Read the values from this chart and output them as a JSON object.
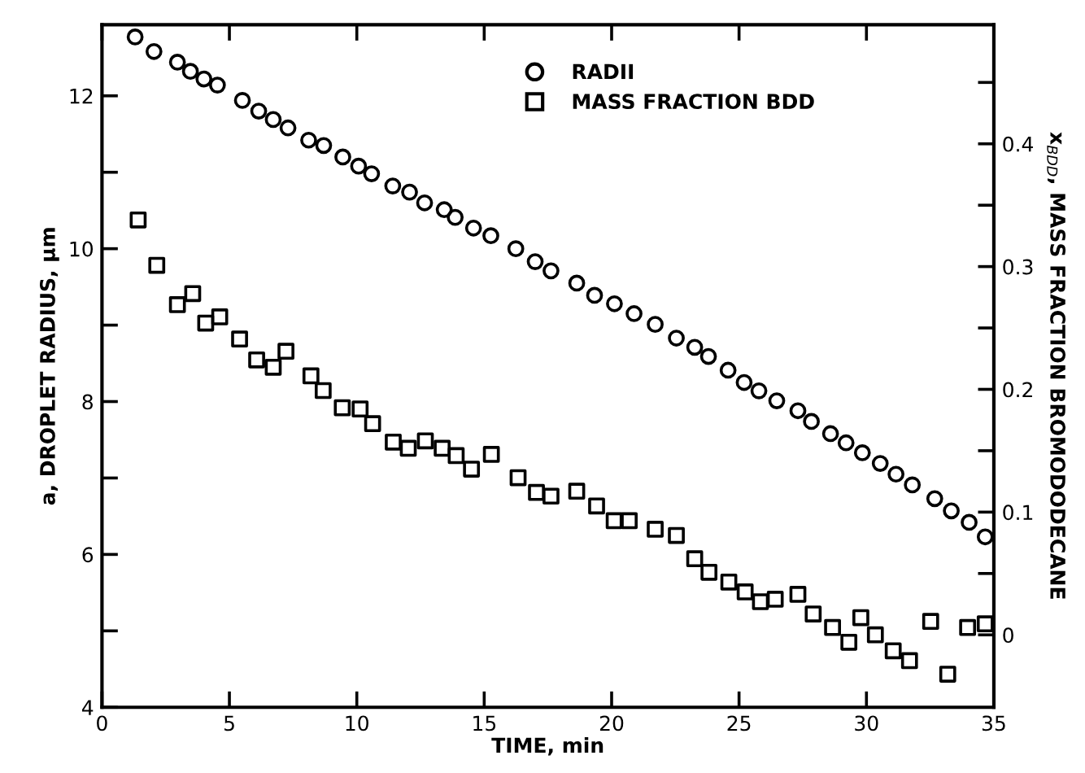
{
  "chart_data": {
    "type": "scatter",
    "xlabel": "TIME, min",
    "ylabel": "a, DROPLET RADIUS, μm",
    "y2label": "x$_{BDD}$, MASS FRACTION BROMODODECANE",
    "xlim": [
      0,
      35
    ],
    "xticks": [
      0,
      5,
      10,
      15,
      20,
      25,
      30,
      35
    ],
    "ylim": [
      4,
      12.93
    ],
    "yticks": [
      4,
      {
        "value": 5,
        "label": null
      },
      6,
      {
        "value": 7,
        "label": null
      },
      8,
      {
        "value": 9,
        "label": null
      },
      10,
      {
        "value": 11,
        "label": null
      },
      12
    ],
    "y2lim": [
      -0.059,
      0.497
    ],
    "y2ticks": [
      0,
      {
        "value": 0.05,
        "label": null
      },
      0.1,
      {
        "value": 0.15,
        "label": null
      },
      0.2,
      {
        "value": 0.25,
        "label": null
      },
      0.3,
      {
        "value": 0.35,
        "label": null
      },
      0.4,
      {
        "value": 0.45,
        "label": null
      }
    ],
    "legend": "top right",
    "grid": false,
    "series": [
      {
        "name": "RADII",
        "color": "#000000",
        "marker": "circle",
        "x": [
          1.3,
          2.04,
          2.96,
          3.47,
          4.0,
          4.53,
          5.51,
          6.15,
          6.72,
          7.3,
          8.11,
          8.7,
          9.45,
          10.07,
          10.58,
          11.41,
          12.07,
          12.66,
          13.43,
          13.86,
          14.58,
          15.26,
          16.24,
          17.0,
          17.62,
          18.63,
          19.33,
          20.11,
          20.88,
          21.71,
          22.54,
          23.26,
          23.8,
          24.57,
          25.2,
          25.78,
          26.48,
          27.31,
          27.84,
          28.59,
          29.2,
          29.84,
          30.54,
          31.16,
          31.8,
          32.68,
          33.33,
          34.03,
          34.66
        ],
        "values": [
          12.77,
          12.58,
          12.44,
          12.32,
          12.22,
          12.14,
          11.94,
          11.8,
          11.69,
          11.58,
          11.42,
          11.35,
          11.2,
          11.08,
          10.98,
          10.82,
          10.74,
          10.6,
          10.51,
          10.41,
          10.27,
          10.17,
          10.0,
          9.83,
          9.71,
          9.55,
          9.39,
          9.28,
          9.15,
          9.01,
          8.83,
          8.71,
          8.59,
          8.41,
          8.25,
          8.14,
          8.01,
          7.88,
          7.74,
          7.58,
          7.46,
          7.33,
          7.19,
          7.05,
          6.91,
          6.73,
          6.57,
          6.42,
          6.23
        ]
      },
      {
        "name": "MASS FRACTION BDD",
        "color": "#000000",
        "marker": "square",
        "axis": "y2",
        "x": [
          1.42,
          2.15,
          2.96,
          3.56,
          4.07,
          4.62,
          5.4,
          6.07,
          6.72,
          7.22,
          8.2,
          8.68,
          9.43,
          10.13,
          10.62,
          11.43,
          12.02,
          12.69,
          13.35,
          13.9,
          14.5,
          15.28,
          16.33,
          17.05,
          17.62,
          18.63,
          19.41,
          20.1,
          20.69,
          21.71,
          22.54,
          23.26,
          23.82,
          24.6,
          25.24,
          25.84,
          26.42,
          27.31,
          27.91,
          28.67,
          29.31,
          29.78,
          30.35,
          31.05,
          31.69,
          32.52,
          33.19,
          33.97,
          34.66
        ],
        "values": [
          0.338,
          0.301,
          0.269,
          0.278,
          0.254,
          0.259,
          0.241,
          0.224,
          0.218,
          0.231,
          0.211,
          0.199,
          0.185,
          0.184,
          0.172,
          0.157,
          0.152,
          0.158,
          0.152,
          0.146,
          0.135,
          0.147,
          0.128,
          0.116,
          0.113,
          0.117,
          0.105,
          0.093,
          0.093,
          0.086,
          0.081,
          0.062,
          0.051,
          0.043,
          0.035,
          0.027,
          0.029,
          0.033,
          0.017,
          0.006,
          -0.006,
          0.014,
          0.0,
          -0.013,
          -0.021,
          0.011,
          -0.032,
          0.006,
          0.009
        ]
      }
    ]
  }
}
